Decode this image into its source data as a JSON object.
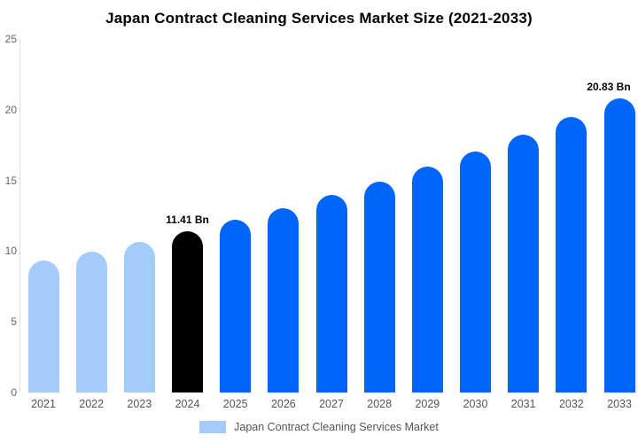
{
  "title": "Japan Contract Cleaning Services Market Size (2021-2033)",
  "colors": {
    "light_blue": "#A4CCFA",
    "highlight_black": "#000000",
    "blue": "#0066FB",
    "axis_line": "#E0E0E0",
    "y_tick_text": "#666666",
    "x_label_text": "#555555",
    "title_text": "#000000"
  },
  "chart_data": {
    "type": "bar",
    "title": "Japan Contract Cleaning Services Market Size (2021-2033)",
    "xlabel": "",
    "ylabel": "",
    "unit": "Bn",
    "categories": [
      "2021",
      "2022",
      "2023",
      "2024",
      "2025",
      "2026",
      "2027",
      "2028",
      "2029",
      "2030",
      "2031",
      "2032",
      "2033"
    ],
    "values": [
      9.33,
      9.98,
      10.67,
      11.41,
      12.2,
      13.05,
      13.95,
      14.92,
      15.95,
      17.05,
      18.23,
      19.49,
      20.83
    ],
    "bar_colors": [
      "#A4CCFA",
      "#A4CCFA",
      "#A4CCFA",
      "#000000",
      "#0066FB",
      "#0066FB",
      "#0066FB",
      "#0066FB",
      "#0066FB",
      "#0066FB",
      "#0066FB",
      "#0066FB",
      "#0066FB"
    ],
    "ylim": [
      0,
      25
    ],
    "yticks": [
      0,
      5,
      10,
      15,
      20,
      25
    ],
    "grid": false,
    "data_labels": [
      {
        "category": "2024",
        "text": "11.41 Bn"
      },
      {
        "category": "2033",
        "text": "20.83 Bn"
      }
    ],
    "legend": {
      "label": "Japan Contract Cleaning Services Market",
      "position": "bottom",
      "swatch_color": "#A4CCFA"
    }
  }
}
